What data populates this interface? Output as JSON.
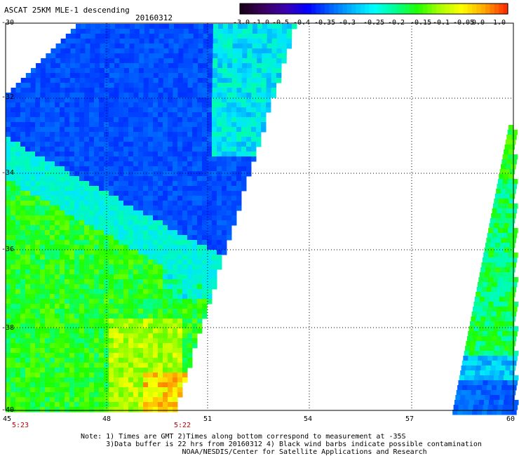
{
  "title": "ASCAT 25KM MLE-1 descending",
  "date": "20160312",
  "colorbar": {
    "ticks": [
      "-3.0",
      "-1.0",
      "-0.5",
      "-0.4",
      "-0.35",
      "-0.3",
      "-0.25",
      "-0.2",
      "-0.15",
      "-0.1",
      "-0.05",
      "0.0",
      "1.0"
    ],
    "colors": [
      "#1a001a",
      "#3a0060",
      "#3b00b0",
      "#0000ff",
      "#0060ff",
      "#00b4ff",
      "#00ffff",
      "#00ff90",
      "#20ff00",
      "#aaff00",
      "#ffff00",
      "#ffaa00",
      "#ff3000"
    ]
  },
  "axes": {
    "lat_labels": [
      "-30",
      "-32",
      "-34",
      "-36",
      "-38",
      "-40"
    ],
    "lon_labels": [
      "45",
      "48",
      "51",
      "54",
      "57",
      "60"
    ]
  },
  "times": {
    "left": "5:23",
    "right": "5:22"
  },
  "notes": [
    "Note: 1) Times are GMT 2)Times along bottom correspond to measurement at -35S",
    "      3)Data buffer is 22 hrs from 20160312 4) Black wind barbs indicate possible contamination",
    "                        NOAA/NESDIS/Center for Satellite Applications and Research"
  ]
}
